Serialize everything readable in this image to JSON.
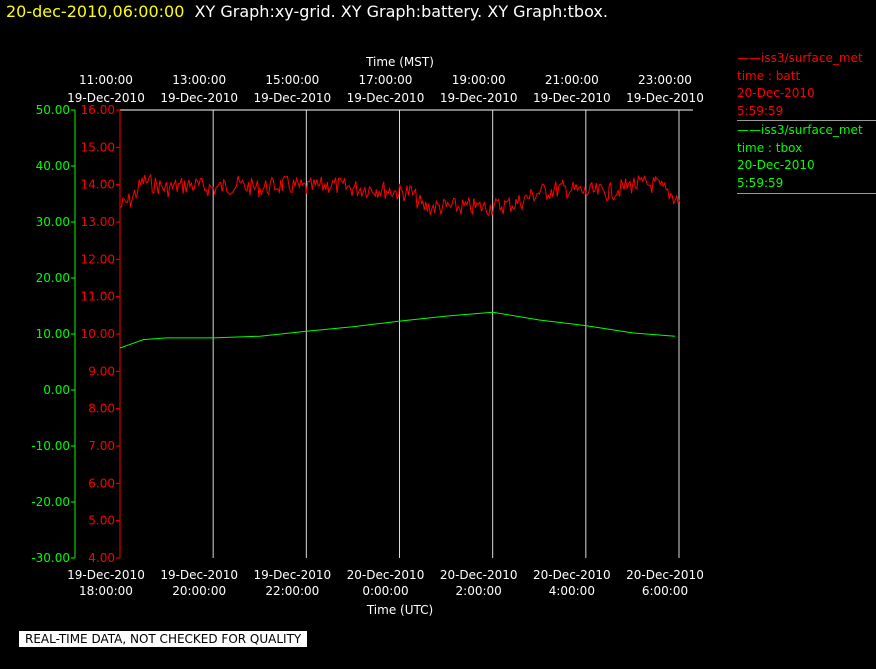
{
  "header": {
    "timestamp": "20-dec-2010,06:00:00",
    "titles": "XY Graph:xy-grid.  XY Graph:battery.  XY Graph:tbox."
  },
  "colors": {
    "batt": "#ff0000",
    "tbox": "#00ff00",
    "grid": "#ffffff",
    "background": "#000000"
  },
  "legend": [
    {
      "line1": "iss3/surface_met",
      "line2": "time : batt",
      "line3": "20-Dec-2010",
      "line4": "5:59:59",
      "color": "#ff0000"
    },
    {
      "line1": "iss3/surface_met",
      "line2": "time : tbox",
      "line3": "20-Dec-2010",
      "line4": "5:59:59",
      "color": "#00ff00"
    }
  ],
  "footer": "REAL-TIME DATA, NOT CHECKED FOR QUALITY",
  "chart_data": {
    "type": "line",
    "top_axis": {
      "title": "Time (MST)",
      "ticks": [
        {
          "time": "11:00:00",
          "date": "19-Dec-2010"
        },
        {
          "time": "13:00:00",
          "date": "19-Dec-2010"
        },
        {
          "time": "15:00:00",
          "date": "19-Dec-2010"
        },
        {
          "time": "17:00:00",
          "date": "19-Dec-2010"
        },
        {
          "time": "19:00:00",
          "date": "19-Dec-2010"
        },
        {
          "time": "21:00:00",
          "date": "19-Dec-2010"
        },
        {
          "time": "23:00:00",
          "date": "19-Dec-2010"
        }
      ]
    },
    "bottom_axis": {
      "title": "Time (UTC)",
      "ticks": [
        {
          "date": "19-Dec-2010",
          "time": "18:00:00"
        },
        {
          "date": "19-Dec-2010",
          "time": "20:00:00"
        },
        {
          "date": "19-Dec-2010",
          "time": "22:00:00"
        },
        {
          "date": "20-Dec-2010",
          "time": "0:00:00"
        },
        {
          "date": "20-Dec-2010",
          "time": "2:00:00"
        },
        {
          "date": "20-Dec-2010",
          "time": "4:00:00"
        },
        {
          "date": "20-Dec-2010",
          "time": "6:00:00"
        }
      ]
    },
    "xlim_utc": [
      "2010-12-19 18:00:00",
      "2010-12-20 06:00:00"
    ],
    "y_batt": {
      "ylim": [
        4.0,
        16.0
      ],
      "ticks": [
        "16.00",
        "15.00",
        "14.00",
        "13.00",
        "12.00",
        "11.00",
        "10.00",
        "9.00",
        "8.00",
        "7.00",
        "6.00",
        "5.00",
        "4.00"
      ]
    },
    "y_tbox": {
      "ylim": [
        -30.0,
        50.0
      ],
      "ticks": [
        "50.00",
        "40.00",
        "30.00",
        "20.00",
        "10.00",
        "0.00",
        "-10.00",
        "-20.00",
        "-30.00"
      ]
    },
    "series": [
      {
        "name": "iss3/surface_met time : batt",
        "axis": "y_batt",
        "color": "#ff0000",
        "points": [
          [
            "2010-12-19 18:00",
            13.4
          ],
          [
            "2010-12-19 18:15",
            13.6
          ],
          [
            "2010-12-19 18:30",
            14.1
          ],
          [
            "2010-12-19 19:00",
            13.9
          ],
          [
            "2010-12-19 19:30",
            14.0
          ],
          [
            "2010-12-19 20:00",
            13.9
          ],
          [
            "2010-12-19 20:30",
            14.0
          ],
          [
            "2010-12-19 21:00",
            13.9
          ],
          [
            "2010-12-19 21:30",
            14.0
          ],
          [
            "2010-12-19 22:00",
            13.9
          ],
          [
            "2010-12-19 22:30",
            14.0
          ],
          [
            "2010-12-19 23:00",
            13.9
          ],
          [
            "2010-12-19 23:30",
            13.9
          ],
          [
            "2010-12-20 00:00",
            13.8
          ],
          [
            "2010-12-20 00:15",
            13.8
          ],
          [
            "2010-12-20 00:30",
            13.4
          ],
          [
            "2010-12-20 01:00",
            13.4
          ],
          [
            "2010-12-20 01:30",
            13.4
          ],
          [
            "2010-12-20 02:00",
            13.4
          ],
          [
            "2010-12-20 02:30",
            13.5
          ],
          [
            "2010-12-20 03:00",
            13.8
          ],
          [
            "2010-12-20 03:30",
            13.9
          ],
          [
            "2010-12-20 04:00",
            13.8
          ],
          [
            "2010-12-20 04:30",
            13.8
          ],
          [
            "2010-12-20 05:00",
            14.0
          ],
          [
            "2010-12-20 05:30",
            14.0
          ],
          [
            "2010-12-20 06:00",
            13.6
          ]
        ],
        "noise_amplitude": 0.25
      },
      {
        "name": "iss3/surface_met time : tbox",
        "axis": "y_tbox",
        "color": "#00ff00",
        "points": [
          [
            "2010-12-19 18:00",
            7.5
          ],
          [
            "2010-12-19 18:30",
            9.0
          ],
          [
            "2010-12-19 19:00",
            9.3
          ],
          [
            "2010-12-19 20:00",
            9.3
          ],
          [
            "2010-12-19 21:00",
            9.6
          ],
          [
            "2010-12-19 22:00",
            10.5
          ],
          [
            "2010-12-19 23:00",
            11.3
          ],
          [
            "2010-12-20 00:00",
            12.3
          ],
          [
            "2010-12-20 01:00",
            13.2
          ],
          [
            "2010-12-20 02:00",
            13.9
          ],
          [
            "2010-12-20 03:00",
            12.5
          ],
          [
            "2010-12-20 04:00",
            11.5
          ],
          [
            "2010-12-20 05:00",
            10.2
          ],
          [
            "2010-12-20 05:55",
            9.6
          ]
        ]
      }
    ]
  }
}
